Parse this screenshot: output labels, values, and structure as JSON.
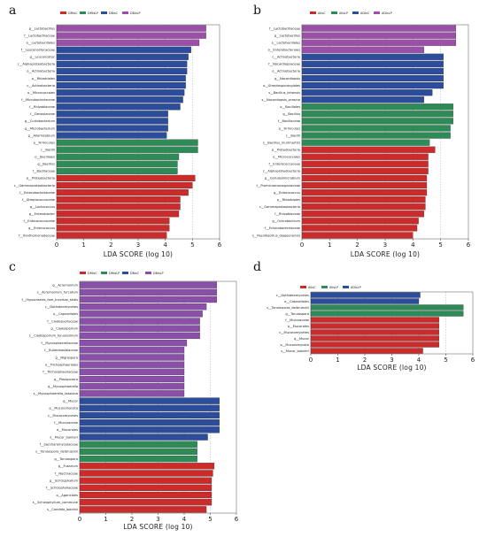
{
  "chart_data": [
    {
      "id": "a",
      "panel_letter": "a",
      "type": "bar",
      "orientation": "horizontal",
      "xlabel": "LDA SCORE (log 10)",
      "xlim": [
        0,
        6
      ],
      "xticks": [
        0,
        1,
        2,
        3,
        4,
        5,
        6
      ],
      "grid": "vertical dashed",
      "legend_position": "top",
      "groups": [
        {
          "name": "DMisC",
          "color": "#cc2b2b"
        },
        {
          "name": "DMisLP",
          "color": "#2e8b57"
        },
        {
          "name": "DBisC",
          "color": "#2b4d9b"
        },
        {
          "name": "DBisLP",
          "color": "#9b4fa8"
        }
      ],
      "bars": [
        {
          "label": "g__Lactobacillus",
          "value": 5.5,
          "group": "DBisLP"
        },
        {
          "label": "f__Lactobacillaceae",
          "value": 5.5,
          "group": "DBisLP"
        },
        {
          "label": "o__Lactobacillales",
          "value": 5.25,
          "group": "DBisLP"
        },
        {
          "label": "f__Leuconostocaceae",
          "value": 4.95,
          "group": "DBisC"
        },
        {
          "label": "g__Leuconostoc",
          "value": 4.85,
          "group": "DBisC"
        },
        {
          "label": "c__Alphaproteobacteria",
          "value": 4.8,
          "group": "DBisC"
        },
        {
          "label": "o__Actinobacteria",
          "value": 4.8,
          "group": "DBisC"
        },
        {
          "label": "o__Rhizobiales",
          "value": 4.75,
          "group": "DBisC"
        },
        {
          "label": "c__Actinobacteria",
          "value": 4.75,
          "group": "DBisC"
        },
        {
          "label": "o__Micrococcales",
          "value": 4.7,
          "group": "DBisC"
        },
        {
          "label": "f__Microbacteriaceae",
          "value": 4.65,
          "group": "DBisC"
        },
        {
          "label": "f__Rhizobiaceae",
          "value": 4.55,
          "group": "DBisC"
        },
        {
          "label": "f__Devosiaceae",
          "value": 4.1,
          "group": "DBisC"
        },
        {
          "label": "g__Curtobacterium",
          "value": 4.1,
          "group": "DBisC"
        },
        {
          "label": "g__Microbacterium",
          "value": 4.1,
          "group": "DBisC"
        },
        {
          "label": "g__Allorhizobium",
          "value": 4.05,
          "group": "DBisC"
        },
        {
          "label": "p__Firmicutes",
          "value": 5.2,
          "group": "DMisLP"
        },
        {
          "label": "c__Bacilli",
          "value": 5.2,
          "group": "DMisLP"
        },
        {
          "label": "o__Bacillales",
          "value": 4.5,
          "group": "DMisLP"
        },
        {
          "label": "g__Bacillus",
          "value": 4.45,
          "group": "DMisLP"
        },
        {
          "label": "f__Bacillaceae",
          "value": 4.45,
          "group": "DMisLP"
        },
        {
          "label": "p__Proteobacteria",
          "value": 5.1,
          "group": "DMisC"
        },
        {
          "label": "c__Gammaproteobacteria",
          "value": 5.0,
          "group": "DMisC"
        },
        {
          "label": "f__Enterobacteriaceae",
          "value": 4.85,
          "group": "DMisC"
        },
        {
          "label": "f__Streptococcaceae",
          "value": 4.55,
          "group": "DMisC"
        },
        {
          "label": "g__Lactococcus",
          "value": 4.55,
          "group": "DMisC"
        },
        {
          "label": "g__Enterobacter",
          "value": 4.5,
          "group": "DMisC"
        },
        {
          "label": "f__Enterococcaceae",
          "value": 4.15,
          "group": "DMisC"
        },
        {
          "label": "g__Enterococcus",
          "value": 4.15,
          "group": "DMisC"
        },
        {
          "label": "f__Xanthomonadaceae",
          "value": 4.05,
          "group": "DMisC"
        }
      ]
    },
    {
      "id": "b",
      "panel_letter": "b",
      "type": "bar",
      "orientation": "horizontal",
      "xlabel": "LDA SCORE (log 10)",
      "xlim": [
        0,
        6
      ],
      "xticks": [
        0,
        1,
        2,
        3,
        4,
        5,
        6
      ],
      "grid": "vertical dashed",
      "legend_position": "top",
      "groups": [
        {
          "name": "AIIsC",
          "color": "#cc2b2b"
        },
        {
          "name": "AIIsLP",
          "color": "#2e8b57"
        },
        {
          "name": "ADIsC",
          "color": "#2b4d9b"
        },
        {
          "name": "ADIsLP",
          "color": "#9b4fa8"
        }
      ],
      "bars": [
        {
          "label": "f__Lactobacillaceae",
          "value": 5.55,
          "group": "ADIsLP"
        },
        {
          "label": "g__Lactobacillus",
          "value": 5.55,
          "group": "ADIsLP"
        },
        {
          "label": "o__Lactobacillales",
          "value": 5.55,
          "group": "ADIsLP"
        },
        {
          "label": "o__Enterobacterales",
          "value": 4.4,
          "group": "ADIsLP"
        },
        {
          "label": "c__Actinobacteria",
          "value": 5.1,
          "group": "ADIsC"
        },
        {
          "label": "f__Nocardiopsaceae",
          "value": 5.1,
          "group": "ADIsC"
        },
        {
          "label": "o__Actinobacteria",
          "value": 5.1,
          "group": "ADIsC"
        },
        {
          "label": "g__Nocardiopsis",
          "value": 5.1,
          "group": "ADIsC"
        },
        {
          "label": "o__Streptosporangiales",
          "value": 5.1,
          "group": "ADIsC"
        },
        {
          "label": "s__Bacillus_lehensis",
          "value": 4.7,
          "group": "ADIsC"
        },
        {
          "label": "s__Nocardiopsis_prasina",
          "value": 4.4,
          "group": "ADIsC"
        },
        {
          "label": "o__Bacillales",
          "value": 5.45,
          "group": "AIIsLP"
        },
        {
          "label": "g__Bacillus",
          "value": 5.45,
          "group": "AIIsLP"
        },
        {
          "label": "f__Bacillaceae",
          "value": 5.45,
          "group": "AIIsLP"
        },
        {
          "label": "p__Firmicutes",
          "value": 5.35,
          "group": "AIIsLP"
        },
        {
          "label": "c__Bacilli",
          "value": 5.35,
          "group": "AIIsLP"
        },
        {
          "label": "s__Bacillus_murimartini",
          "value": 4.6,
          "group": "AIIsLP"
        },
        {
          "label": "p__Proteobacteria",
          "value": 4.8,
          "group": "AIIsC"
        },
        {
          "label": "o__Micrococcales",
          "value": 4.55,
          "group": "AIIsC"
        },
        {
          "label": "f__Enterococcaceae",
          "value": 4.55,
          "group": "AIIsC"
        },
        {
          "label": "c__Alphaproteobacteria",
          "value": 4.55,
          "group": "AIIsC"
        },
        {
          "label": "g__Cellulosimicrobium",
          "value": 4.5,
          "group": "AIIsC"
        },
        {
          "label": "f__Promicromonosporaceae",
          "value": 4.5,
          "group": "AIIsC"
        },
        {
          "label": "g__Enterococcus",
          "value": 4.5,
          "group": "AIIsC"
        },
        {
          "label": "o__Rhizobiales",
          "value": 4.45,
          "group": "AIIsC"
        },
        {
          "label": "c__Gammaproteobacteria",
          "value": 4.45,
          "group": "AIIsC"
        },
        {
          "label": "f__Rhizobiaceae",
          "value": 4.4,
          "group": "AIIsC"
        },
        {
          "label": "g__Ochrobactrum",
          "value": 4.2,
          "group": "AIIsC"
        },
        {
          "label": "f__Enterobacteriaceae",
          "value": 4.15,
          "group": "AIIsC"
        },
        {
          "label": "s__Paenibacillus_daejeonensis",
          "value": 4.0,
          "group": "AIIsC"
        }
      ]
    },
    {
      "id": "c",
      "panel_letter": "c",
      "type": "bar",
      "orientation": "horizontal",
      "xlabel": "LDA SCORE (log 10)",
      "xlim": [
        0,
        6
      ],
      "xticks": [
        0,
        1,
        2,
        3,
        4,
        5,
        6
      ],
      "grid": "vertical dashed",
      "legend_position": "top",
      "groups": [
        {
          "name": "DMisC",
          "color": "#cc2b2b"
        },
        {
          "name": "DMisLP",
          "color": "#2e8b57"
        },
        {
          "name": "DBisC",
          "color": "#2b4d9b"
        },
        {
          "name": "DBisLP",
          "color": "#8a4fa8"
        }
      ],
      "bars": [
        {
          "label": "g__Acremonium",
          "value": 5.25,
          "group": "DBisLP"
        },
        {
          "label": "s__Acremonium_furcatum",
          "value": 5.25,
          "group": "DBisLP"
        },
        {
          "label": "f__Hypocreales_fam_Incertae_sedis",
          "value": 5.25,
          "group": "DBisLP"
        },
        {
          "label": "c__Dothideomycetes",
          "value": 4.85,
          "group": "DBisLP"
        },
        {
          "label": "o__Capnodiales",
          "value": 4.7,
          "group": "DBisLP"
        },
        {
          "label": "f__Cladosporiaceae",
          "value": 4.6,
          "group": "DBisLP"
        },
        {
          "label": "g__Cladosporium",
          "value": 4.6,
          "group": "DBisLP"
        },
        {
          "label": "s__Cladosporium_tenuissimum",
          "value": 4.6,
          "group": "DBisLP"
        },
        {
          "label": "f__Mycosphaerellaceae",
          "value": 4.1,
          "group": "DBisLP"
        },
        {
          "label": "f__Bulleribasidiaceae",
          "value": 4.0,
          "group": "DBisLP"
        },
        {
          "label": "g__Nigrospora",
          "value": 4.0,
          "group": "DBisLP"
        },
        {
          "label": "o__Trichosphaeriales",
          "value": 4.0,
          "group": "DBisLP"
        },
        {
          "label": "f__Trichosphaeriaceae",
          "value": 4.0,
          "group": "DBisLP"
        },
        {
          "label": "g__Pleosporora",
          "value": 4.0,
          "group": "DBisLP"
        },
        {
          "label": "g__Mycosphaerella",
          "value": 4.0,
          "group": "DBisLP"
        },
        {
          "label": "s__Mycosphaerella_tassiana",
          "value": 4.0,
          "group": "DBisLP"
        },
        {
          "label": "g__Mucor",
          "value": 5.35,
          "group": "DBisC"
        },
        {
          "label": "p__Mucoromycota",
          "value": 5.35,
          "group": "DBisC"
        },
        {
          "label": "c__Mucoromycetes",
          "value": 5.35,
          "group": "DBisC"
        },
        {
          "label": "f__Mucoraceae",
          "value": 5.35,
          "group": "DBisC"
        },
        {
          "label": "o__Mucorales",
          "value": 5.35,
          "group": "DBisC"
        },
        {
          "label": "s__Mucor_bainieri",
          "value": 4.9,
          "group": "DBisC"
        },
        {
          "label": "f__Saccharomycetaceae",
          "value": 4.5,
          "group": "DMisLP"
        },
        {
          "label": "s__Torulaspora_delbrueckii",
          "value": 4.5,
          "group": "DMisLP"
        },
        {
          "label": "g__Torulaspora",
          "value": 4.5,
          "group": "DMisLP"
        },
        {
          "label": "g__Fusarium",
          "value": 5.15,
          "group": "DMisC"
        },
        {
          "label": "f__Nectriaceae",
          "value": 5.1,
          "group": "DMisC"
        },
        {
          "label": "g__Schizophyllum",
          "value": 5.05,
          "group": "DMisC"
        },
        {
          "label": "f__Schizophyllaceae",
          "value": 5.05,
          "group": "DMisC"
        },
        {
          "label": "o__Agaricales",
          "value": 5.05,
          "group": "DMisC"
        },
        {
          "label": "s__Schizophyllum_commune",
          "value": 5.05,
          "group": "DMisC"
        },
        {
          "label": "s__Candida_boidinii",
          "value": 4.85,
          "group": "DMisC"
        }
      ]
    },
    {
      "id": "d",
      "panel_letter": "d",
      "type": "bar",
      "orientation": "horizontal",
      "xlabel": "LDA SCORE (log 10)",
      "xlim": [
        0,
        6
      ],
      "xticks": [
        0,
        1,
        2,
        3,
        4,
        5,
        6
      ],
      "grid": "vertical dashed",
      "legend_position": "top",
      "groups": [
        {
          "name": "AIIsC",
          "color": "#cc2b2b"
        },
        {
          "name": "AIIsLP",
          "color": "#2e8b57"
        },
        {
          "name": "ADIsLP",
          "color": "#2b4d9b"
        }
      ],
      "bars": [
        {
          "label": "c__Dothideomycetes",
          "value": 4.05,
          "group": "ADIsLP"
        },
        {
          "label": "o__Capnodiales",
          "value": 4.0,
          "group": "ADIsLP"
        },
        {
          "label": "s__Torulaspora_delbrueckii",
          "value": 5.65,
          "group": "AIIsLP"
        },
        {
          "label": "g__Torulaspora",
          "value": 5.65,
          "group": "AIIsLP"
        },
        {
          "label": "f__Mucoraceae",
          "value": 4.75,
          "group": "AIIsC"
        },
        {
          "label": "o__Mucorales",
          "value": 4.75,
          "group": "AIIsC"
        },
        {
          "label": "c__Mucoromycetes",
          "value": 4.75,
          "group": "AIIsC"
        },
        {
          "label": "g__Mucor",
          "value": 4.75,
          "group": "AIIsC"
        },
        {
          "label": "p__Mucoromycota",
          "value": 4.75,
          "group": "AIIsC"
        },
        {
          "label": "s__Mucor_bainieri",
          "value": 4.15,
          "group": "AIIsC"
        }
      ]
    }
  ]
}
